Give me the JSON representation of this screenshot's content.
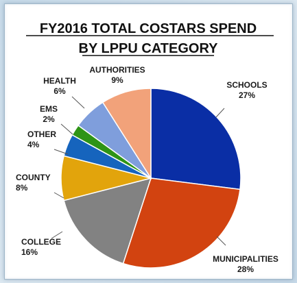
{
  "chart_data": {
    "type": "pie",
    "title_line1": "FY2016 TOTAL COSTARS  SPEND",
    "title_line2": "BY LPPU CATEGORY",
    "slices": [
      {
        "label": "SCHOOLS",
        "value": 27,
        "pct": "27%",
        "color": "#0a2ea5"
      },
      {
        "label": "MUNICIPALITIES",
        "value": 28,
        "pct": "28%",
        "color": "#d24310"
      },
      {
        "label": "COLLEGE",
        "value": 16,
        "pct": "16%",
        "color": "#828282"
      },
      {
        "label": "COUNTY",
        "value": 8,
        "pct": "8%",
        "color": "#e2a40c"
      },
      {
        "label": "OTHER",
        "value": 4,
        "pct": "4%",
        "color": "#1664bd"
      },
      {
        "label": "EMS",
        "value": 2,
        "pct": "2%",
        "color": "#2e9416"
      },
      {
        "label": "HEALTH",
        "value": 6,
        "pct": "6%",
        "color": "#7f9edc"
      },
      {
        "label": "AUTHORITIES",
        "value": 9,
        "pct": "9%",
        "color": "#f2a27a"
      }
    ]
  }
}
